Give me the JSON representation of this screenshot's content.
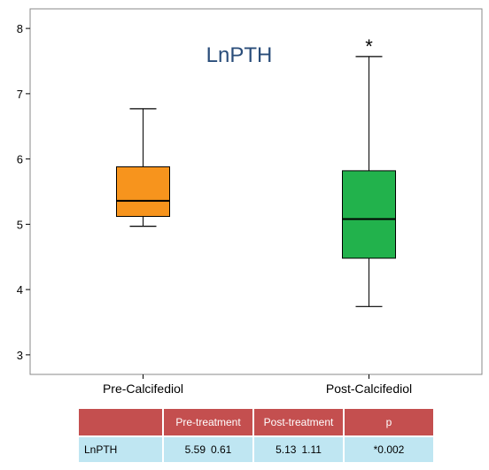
{
  "chart_data": {
    "type": "box",
    "title": "LnPTH",
    "xlabel": "",
    "ylabel": "",
    "ylim": [
      2.7,
      8.3
    ],
    "yticks": [
      3,
      4,
      5,
      6,
      7,
      8
    ],
    "categories": [
      "Pre-Calcifediol",
      "Post-Calcifediol"
    ],
    "boxes": [
      {
        "category": "Pre-Calcifediol",
        "whisker_low": 4.97,
        "q1": 5.12,
        "median": 5.36,
        "q3": 5.88,
        "whisker_high": 6.77,
        "color": "#f7941d",
        "mark": ""
      },
      {
        "category": "Post-Calcifediol",
        "whisker_low": 3.74,
        "q1": 4.48,
        "median": 5.08,
        "q3": 5.82,
        "whisker_high": 7.57,
        "color": "#22b24c",
        "mark": "*"
      }
    ],
    "grid": false
  },
  "table": {
    "header": [
      "",
      "Pre-treatment",
      "Post-treatment",
      "p"
    ],
    "rows": [
      {
        "label": "LnPTH",
        "pre_mean": "5.59",
        "pre_sd": "0.61",
        "post_mean": "5.13",
        "post_sd": "1.11",
        "p": "*0.002"
      }
    ],
    "header_color": "#c44f4f",
    "row_color": "#bfe6f2"
  }
}
